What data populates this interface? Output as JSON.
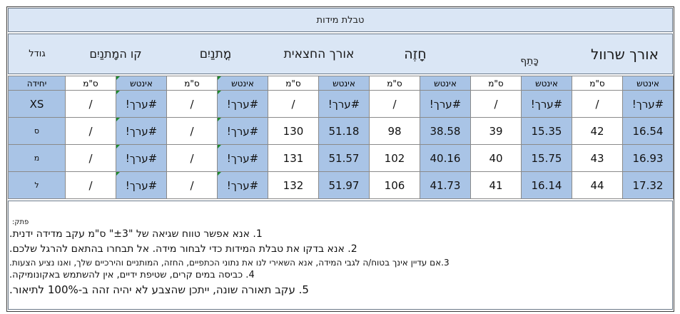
{
  "title": "טבלת מידות",
  "headers": {
    "trouser_length": "אורך שרוול",
    "shoulder": "כָּתֵף",
    "chest": "חָזֶה",
    "half_length": "אורך החצאית",
    "waist": "מֳתנַיִם",
    "hips": "קו המָתנַיִם",
    "size": "גודל"
  },
  "units": {
    "inch": "אינטש",
    "cm": "ס\"מ",
    "unit": "יחידה"
  },
  "rows": [
    {
      "size": "XS",
      "trouser_in": "#ערך!",
      "trouser_cm": "/",
      "shoulder_in": "#ערך!",
      "shoulder_cm": "/",
      "chest_in": "#ערך!",
      "chest_cm": "/",
      "half_in": "#ערך!",
      "half_cm": "/",
      "waist_in": "#ערך!",
      "waist_cm": "/",
      "hips_in": "#ערך!",
      "hips_cm": "/"
    },
    {
      "size": "ס",
      "trouser_in": "16.54",
      "trouser_cm": "42",
      "shoulder_in": "15.35",
      "shoulder_cm": "39",
      "chest_in": "38.58",
      "chest_cm": "98",
      "half_in": "51.18",
      "half_cm": "130",
      "waist_in": "#ערך!",
      "waist_cm": "/",
      "hips_in": "#ערך!",
      "hips_cm": "/"
    },
    {
      "size": "מ",
      "trouser_in": "16.93",
      "trouser_cm": "43",
      "shoulder_in": "15.75",
      "shoulder_cm": "40",
      "chest_in": "40.16",
      "chest_cm": "102",
      "half_in": "51.57",
      "half_cm": "131",
      "waist_in": "#ערך!",
      "waist_cm": "/",
      "hips_in": "#ערך!",
      "hips_cm": "/"
    },
    {
      "size": "ל",
      "trouser_in": "17.32",
      "trouser_cm": "44",
      "shoulder_in": "16.14",
      "shoulder_cm": "41",
      "chest_in": "41.73",
      "chest_cm": "106",
      "half_in": "51.97",
      "half_cm": "132",
      "waist_in": "#ערך!",
      "waist_cm": "/",
      "hips_in": "#ערך!",
      "hips_cm": "/"
    }
  ],
  "notes": {
    "label": "פתק:",
    "n1": "1. אנא אפשר טווח שגיאה של \"±3\" ס\"מ עקב מדידה ידנית.",
    "n2": "2. אנא בדקו את טבלת המידות כדי לבחור מידה. אל תבחרו בהתאם להרגל שלכם.",
    "n3": "3.אם עדיין אינך בטוח/ה לגבי המידה, אנא השאירי לנו את נתוני הכתפיים, החזה, המותניים והירכיים שלך, ואנו נציע הצעות.",
    "n4": "4. כביסה במים קרים, שטיפת ידיים, אין להשתמש באקונומיקה.",
    "n5": "5. עקב תאורה שונה, ייתכן שהצבע לא יהיה זהה ב-100% לתיאור."
  }
}
